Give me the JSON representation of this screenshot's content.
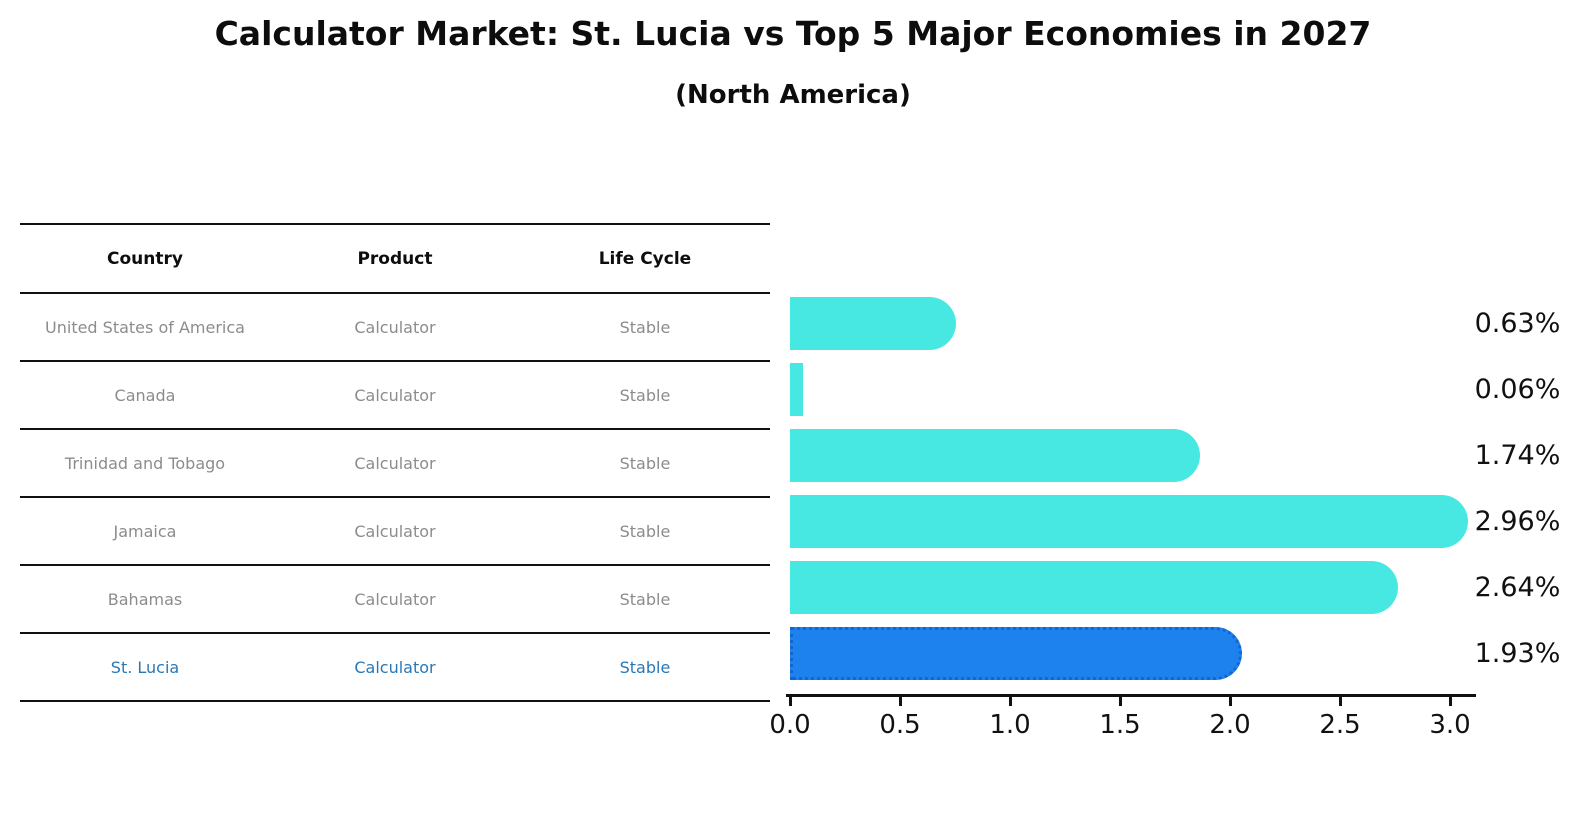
{
  "title": "Calculator Market: St. Lucia vs Top 5 Major Economies in 2027",
  "subtitle": "(North America)",
  "table": {
    "headers": [
      "Country",
      "Product",
      "Life Cycle"
    ],
    "rows": [
      {
        "country": "United States of America",
        "product": "Calculator",
        "life_cycle": "Stable",
        "highlight": false
      },
      {
        "country": "Canada",
        "product": "Calculator",
        "life_cycle": "Stable",
        "highlight": false
      },
      {
        "country": "Trinidad and Tobago",
        "product": "Calculator",
        "life_cycle": "Stable",
        "highlight": false
      },
      {
        "country": "Jamaica",
        "product": "Calculator",
        "life_cycle": "Stable",
        "highlight": false
      },
      {
        "country": "Bahamas",
        "product": "Calculator",
        "life_cycle": "Stable",
        "highlight": false
      },
      {
        "country": "St. Lucia",
        "product": "Calculator",
        "life_cycle": "Stable",
        "highlight": true
      }
    ]
  },
  "chart_data": {
    "type": "bar",
    "orientation": "horizontal",
    "title": "Calculator Market: St. Lucia vs Top 5 Major Economies in 2027",
    "subtitle": "(North America)",
    "categories": [
      "United States of America",
      "Canada",
      "Trinidad and Tobago",
      "Jamaica",
      "Bahamas",
      "St. Lucia"
    ],
    "values": [
      0.63,
      0.06,
      1.74,
      2.96,
      2.64,
      1.93
    ],
    "value_labels": [
      "0.63%",
      "0.06%",
      "1.74%",
      "2.96%",
      "2.64%",
      "1.93%"
    ],
    "highlight_index": 5,
    "xlim": [
      0.0,
      3.0
    ],
    "x_ticks": [
      "0.0",
      "0.5",
      "1.0",
      "1.5",
      "2.0",
      "2.5",
      "3.0"
    ],
    "grid": false,
    "legend": "none"
  },
  "colors": {
    "bar": "#48E8E2",
    "highlight_bar": "#1E82EE",
    "highlight_bar_border": "#1565cf",
    "highlight_text": "#2878b8",
    "axis": "#111111",
    "row_text": "#8c8c8c",
    "header_text": "#0d0d0d"
  }
}
